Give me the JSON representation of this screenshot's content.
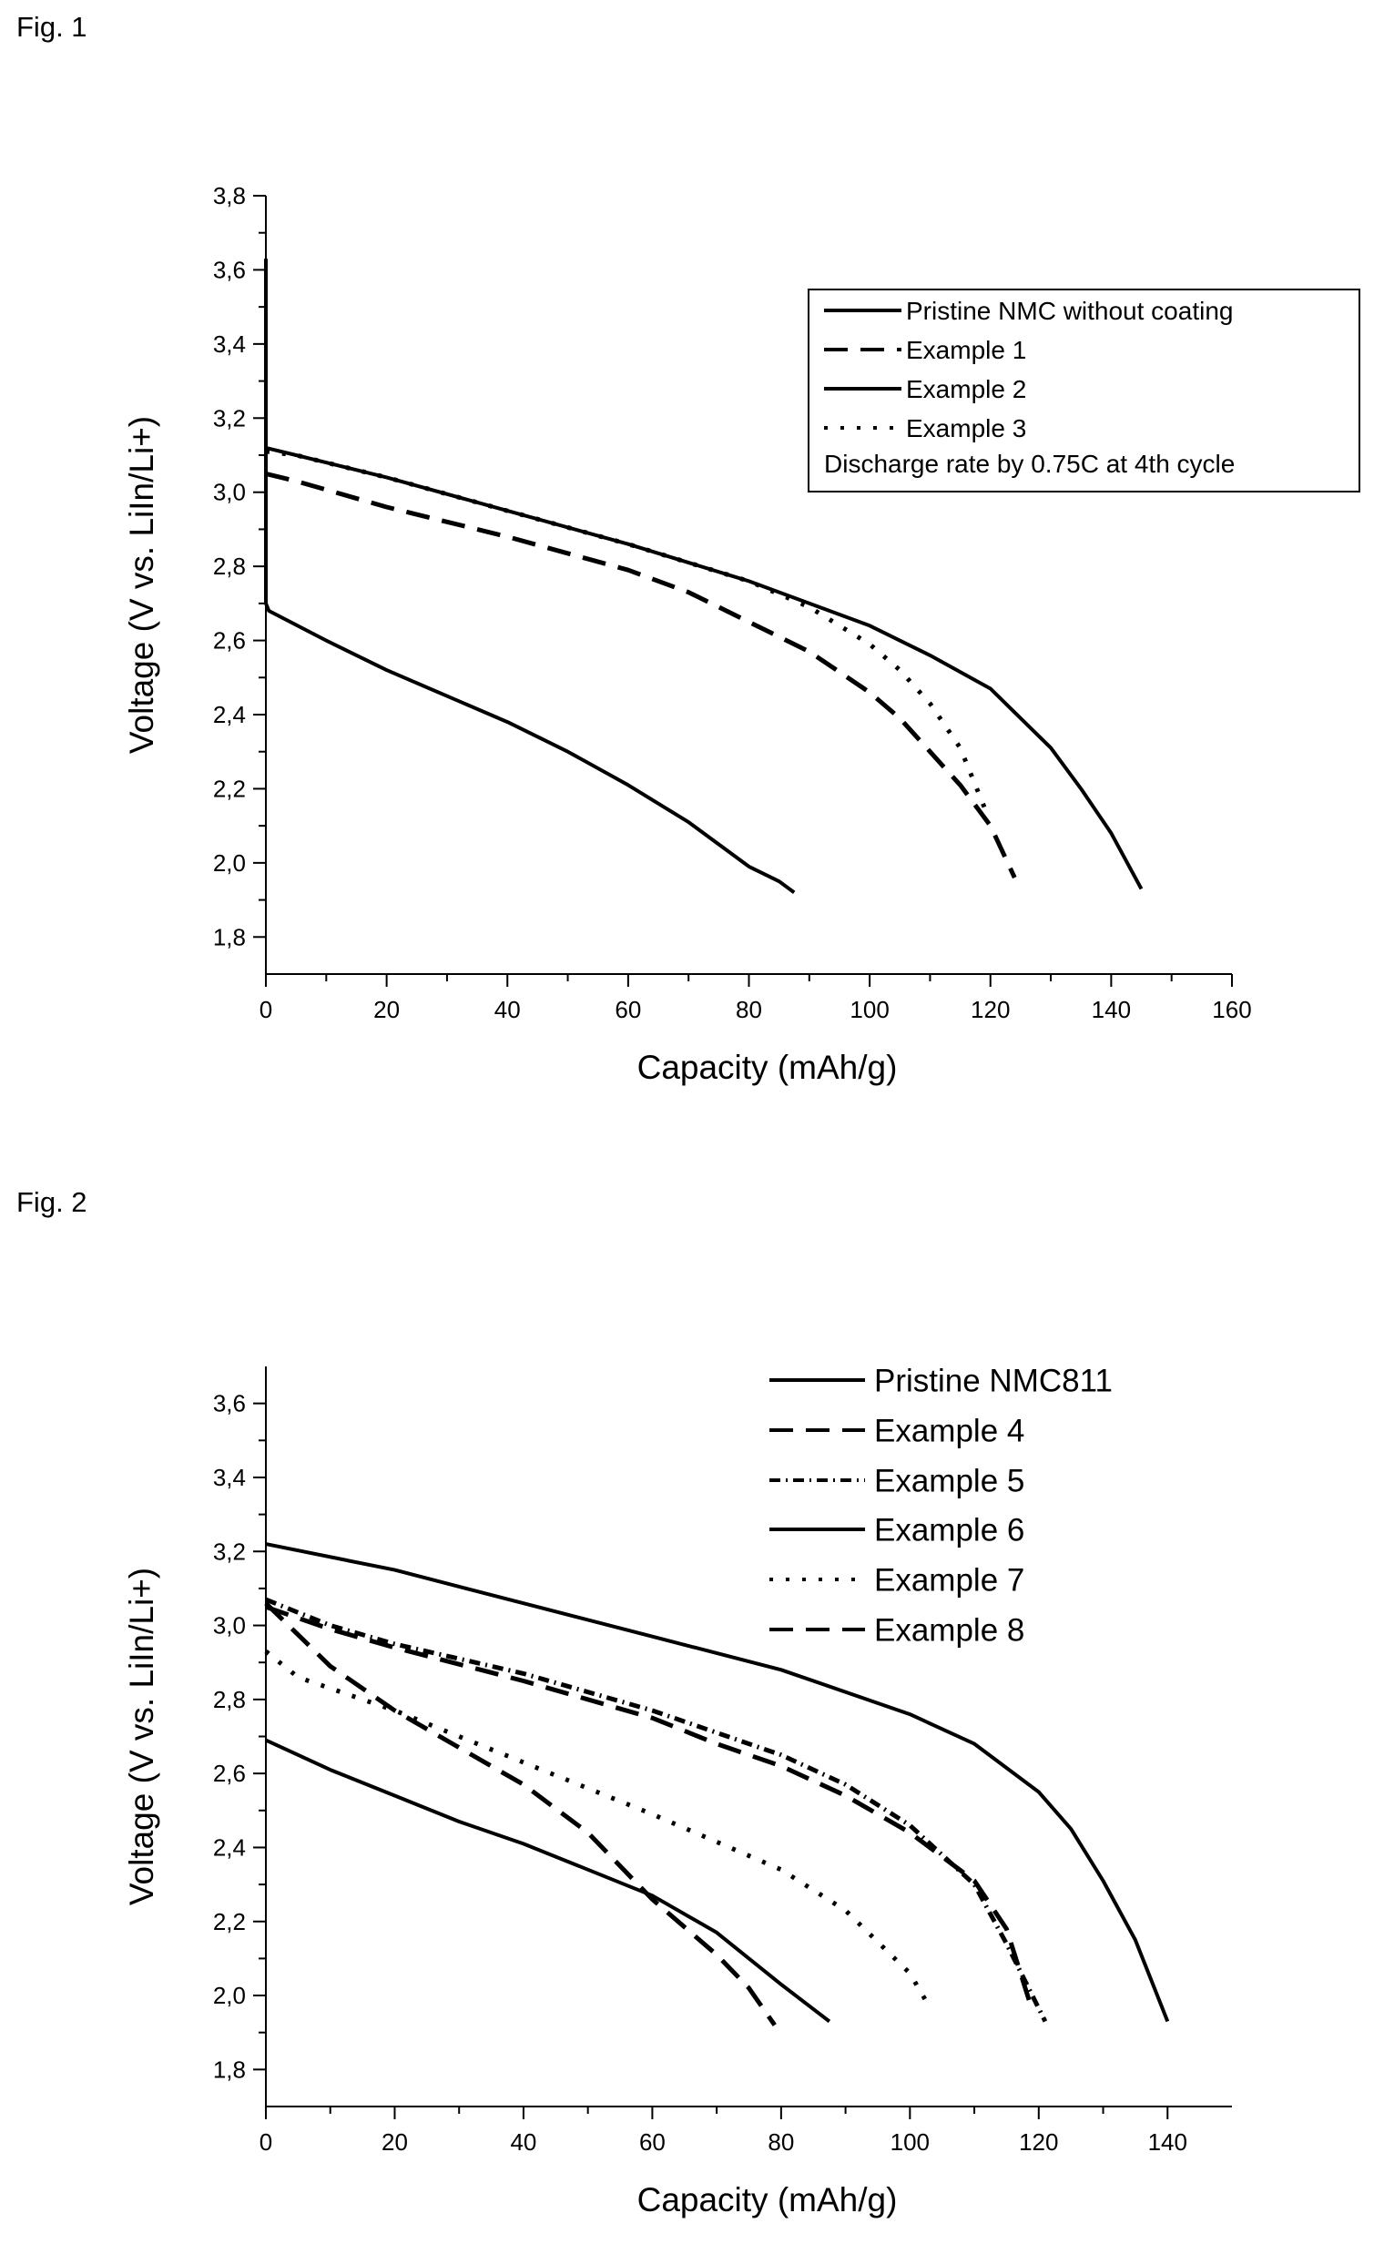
{
  "figures": [
    {
      "label": "Fig. 1"
    },
    {
      "label": "Fig. 2"
    }
  ],
  "chart_data": [
    {
      "type": "line",
      "title": "",
      "xlabel": "Capacity (mAh/g)",
      "ylabel": "Voltage (V vs. LiIn/Li+)",
      "xlim": [
        0,
        160
      ],
      "ylim": [
        1.7,
        3.8
      ],
      "xticks": [
        "0",
        "20",
        "40",
        "60",
        "80",
        "100",
        "120",
        "140",
        "160"
      ],
      "yticks": [
        "1,8",
        "2,0",
        "2,2",
        "2,4",
        "2,6",
        "2,8",
        "3,0",
        "3,2",
        "3,4",
        "3,6",
        "3,8"
      ],
      "grid": false,
      "legend_position": "top-right",
      "legend_note": "Discharge rate by 0.75C at 4th cycle",
      "series": [
        {
          "name": "Pristine NMC without coating",
          "style": "solid",
          "color": "#000000",
          "x": [
            0,
            0,
            0.5,
            10,
            20,
            30,
            40,
            50,
            60,
            70,
            80,
            85,
            87.5
          ],
          "y": [
            3.63,
            2.7,
            2.68,
            2.6,
            2.52,
            2.45,
            2.38,
            2.3,
            2.21,
            2.11,
            1.99,
            1.95,
            1.92
          ]
        },
        {
          "name": "Example 1",
          "style": "dashed",
          "color": "#000000",
          "x": [
            0,
            5,
            20,
            40,
            60,
            70,
            80,
            90,
            100,
            105,
            110,
            115,
            120,
            124
          ],
          "y": [
            3.05,
            3.03,
            2.96,
            2.88,
            2.79,
            2.73,
            2.65,
            2.57,
            2.46,
            2.39,
            2.3,
            2.21,
            2.1,
            1.96
          ]
        },
        {
          "name": "Example 2",
          "style": "solid",
          "color": "#000000",
          "x": [
            0,
            5,
            20,
            40,
            60,
            80,
            100,
            110,
            120,
            130,
            135,
            140,
            145
          ],
          "y": [
            3.12,
            3.1,
            3.04,
            2.95,
            2.86,
            2.76,
            2.64,
            2.56,
            2.47,
            2.31,
            2.2,
            2.08,
            1.93
          ]
        },
        {
          "name": "Example 3",
          "style": "dotted",
          "color": "#000000",
          "x": [
            0,
            5,
            20,
            40,
            60,
            80,
            90,
            100,
            105,
            110,
            115,
            119
          ],
          "y": [
            3.11,
            3.1,
            3.04,
            2.95,
            2.86,
            2.76,
            2.69,
            2.59,
            2.52,
            2.43,
            2.31,
            2.15
          ]
        }
      ]
    },
    {
      "type": "line",
      "title": "",
      "xlabel": "Capacity (mAh/g)",
      "ylabel": "Voltage (V vs. LiIn/Li+)",
      "xlim": [
        0,
        150
      ],
      "ylim": [
        1.7,
        3.7
      ],
      "xticks": [
        "0",
        "20",
        "40",
        "60",
        "80",
        "100",
        "120",
        "140"
      ],
      "yticks": [
        "1,8",
        "2,0",
        "2,2",
        "2,4",
        "2,6",
        "2,8",
        "3,0",
        "3,2",
        "3,4",
        "3,6"
      ],
      "grid": false,
      "legend_position": "top-right",
      "series": [
        {
          "name": "Pristine NMC811",
          "style": "solid",
          "color": "#000000",
          "x": [
            0,
            10,
            20,
            30,
            40,
            50,
            60,
            70,
            75,
            80,
            87.5
          ],
          "y": [
            2.69,
            2.61,
            2.54,
            2.47,
            2.41,
            2.34,
            2.27,
            2.17,
            2.1,
            2.03,
            1.93
          ]
        },
        {
          "name": "Example 4",
          "style": "dashed",
          "color": "#000000",
          "x": [
            0,
            10,
            20,
            40,
            60,
            70,
            80,
            90,
            100,
            110,
            115,
            119
          ],
          "y": [
            3.05,
            2.99,
            2.94,
            2.85,
            2.75,
            2.68,
            2.62,
            2.54,
            2.44,
            2.31,
            2.18,
            1.96
          ]
        },
        {
          "name": "Example 5",
          "style": "dashdot",
          "color": "#000000",
          "x": [
            0,
            10,
            20,
            40,
            60,
            80,
            90,
            100,
            110,
            115,
            121
          ],
          "y": [
            3.07,
            3.0,
            2.95,
            2.87,
            2.77,
            2.65,
            2.57,
            2.46,
            2.3,
            2.14,
            1.93
          ]
        },
        {
          "name": "Example 6",
          "style": "solid",
          "color": "#000000",
          "x": [
            0,
            20,
            40,
            60,
            80,
            100,
            110,
            120,
            125,
            130,
            135,
            140
          ],
          "y": [
            3.22,
            3.15,
            3.06,
            2.97,
            2.88,
            2.76,
            2.68,
            2.55,
            2.45,
            2.31,
            2.15,
            1.93
          ]
        },
        {
          "name": "Example 7",
          "style": "dotted",
          "color": "#000000",
          "x": [
            0,
            5,
            20,
            40,
            60,
            80,
            90,
            100,
            103
          ],
          "y": [
            2.93,
            2.86,
            2.77,
            2.63,
            2.49,
            2.34,
            2.23,
            2.06,
            1.97
          ]
        },
        {
          "name": "Example 8",
          "style": "dashed",
          "color": "#000000",
          "x": [
            0,
            10,
            20,
            30,
            40,
            50,
            60,
            70,
            75,
            79
          ],
          "y": [
            3.06,
            2.89,
            2.77,
            2.67,
            2.57,
            2.44,
            2.26,
            2.11,
            2.02,
            1.92
          ]
        }
      ]
    }
  ]
}
